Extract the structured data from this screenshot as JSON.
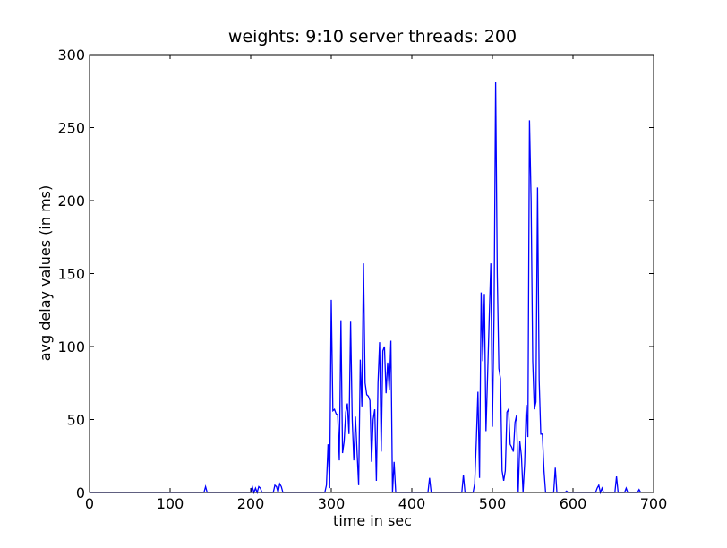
{
  "chart_data": {
    "type": "line",
    "title": "weights: 9:10  server threads: 200",
    "x_label": "time in sec",
    "y_label": "avg delay values (in ms)",
    "color": "#0000ff",
    "xlim": [
      0,
      700
    ],
    "xticks": [
      0,
      100,
      200,
      300,
      400,
      500,
      600,
      700
    ],
    "ylim": [
      0,
      300
    ],
    "yticks": [
      0,
      50,
      100,
      150,
      200,
      250,
      300
    ],
    "x": [
      0,
      142,
      144,
      146,
      200,
      202,
      204,
      206,
      208,
      210,
      212,
      214,
      228,
      230,
      232,
      234,
      236,
      238,
      240,
      292,
      294,
      296,
      298,
      300,
      302,
      304,
      306,
      308,
      310,
      312,
      314,
      316,
      318,
      320,
      322,
      324,
      326,
      328,
      330,
      332,
      334,
      336,
      338,
      340,
      342,
      344,
      346,
      348,
      350,
      352,
      354,
      356,
      358,
      360,
      362,
      364,
      366,
      368,
      370,
      372,
      374,
      376,
      378,
      380,
      420,
      422,
      424,
      462,
      464,
      466,
      476,
      478,
      480,
      482,
      484,
      486,
      488,
      490,
      492,
      494,
      496,
      498,
      500,
      502,
      504,
      506,
      508,
      510,
      512,
      514,
      516,
      518,
      520,
      522,
      524,
      526,
      528,
      530,
      532,
      534,
      536,
      538,
      540,
      542,
      544,
      546,
      548,
      550,
      552,
      554,
      556,
      558,
      560,
      562,
      564,
      566,
      576,
      578,
      580,
      590,
      592,
      594,
      628,
      630,
      632,
      634,
      636,
      638,
      652,
      654,
      656,
      664,
      666,
      668,
      680,
      682,
      684
    ],
    "values": [
      0,
      0,
      4,
      0,
      0,
      4,
      0,
      3,
      0,
      4,
      3,
      0,
      0,
      5,
      4,
      0,
      6,
      4,
      0,
      0,
      5,
      33,
      3,
      132,
      56,
      57,
      54,
      53,
      22,
      118,
      27,
      35,
      55,
      61,
      40,
      117,
      50,
      22,
      52,
      28,
      5,
      91,
      59,
      157,
      75,
      67,
      66,
      63,
      21,
      50,
      57,
      8,
      75,
      103,
      28,
      97,
      100,
      68,
      89,
      70,
      104,
      0,
      21,
      0,
      0,
      10,
      0,
      0,
      12,
      0,
      0,
      6,
      35,
      69,
      10,
      137,
      90,
      136,
      42,
      80,
      119,
      157,
      45,
      120,
      281,
      150,
      85,
      78,
      15,
      8,
      15,
      55,
      57,
      33,
      31,
      28,
      48,
      53,
      0,
      35,
      25,
      0,
      20,
      60,
      38,
      255,
      200,
      90,
      57,
      62,
      209,
      77,
      40,
      40,
      15,
      0,
      0,
      17,
      0,
      0,
      1,
      0,
      0,
      3,
      5,
      0,
      3,
      0,
      0,
      11,
      0,
      0,
      3,
      0,
      0,
      2,
      0
    ]
  }
}
